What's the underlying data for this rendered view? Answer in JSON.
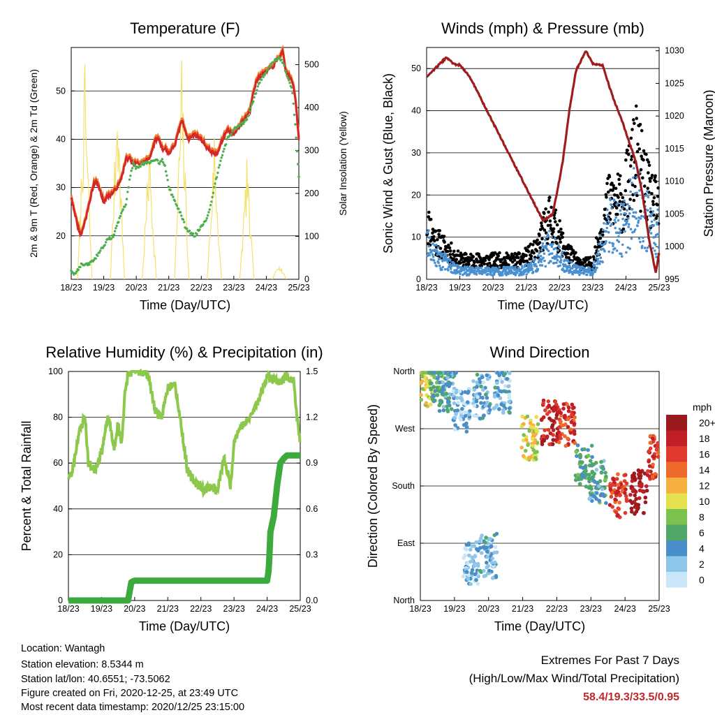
{
  "panels": {
    "temperature": {
      "title": "Temperature (F)",
      "ylabel_left": "2m & 9m T (Red, Orange) & 2m Td (Green)",
      "ylabel_right": "Solar Insolation (Yellow)",
      "xlabel": "Time (Day/UTC)",
      "yticks_left": [
        "20",
        "30",
        "40",
        "50"
      ],
      "yticks_right": [
        "0",
        "100",
        "200",
        "300",
        "400",
        "500"
      ]
    },
    "winds": {
      "title": "Winds (mph) & Pressure (mb)",
      "ylabel_left": "Sonic Wind & Gust (Blue, Black)",
      "ylabel_right": "Station Pressure (Maroon)",
      "xlabel": "Time (Day/UTC)",
      "yticks_left": [
        "0",
        "10",
        "20",
        "30",
        "40",
        "50"
      ],
      "yticks_right": [
        "995",
        "1000",
        "1005",
        "1010",
        "1015",
        "1020",
        "1025",
        "1030"
      ]
    },
    "humidity": {
      "title": "Relative Humidity (%) & Precipitation (in)",
      "ylabel_left": "Percent & Total Rainfall",
      "xlabel": "Time (Day/UTC)",
      "yticks_left": [
        "0",
        "20",
        "40",
        "60",
        "80",
        "100"
      ],
      "yticks_right": [
        "0.0",
        "0.3",
        "0.6",
        "0.9",
        "1.2",
        "1.5"
      ]
    },
    "direction": {
      "title": "Wind Direction",
      "ylabel_left": "Direction (Colored By Speed)",
      "xlabel": "Time (Day/UTC)",
      "yticks_left": [
        "North",
        "East",
        "South",
        "West",
        "North"
      ],
      "legend_title": "mph",
      "legend_labels": [
        "0",
        "2",
        "4",
        "6",
        "8",
        "10",
        "12",
        "14",
        "16",
        "18",
        "20+"
      ],
      "legend_colors": [
        "#c8e6f7",
        "#8ec6ea",
        "#4a8ec8",
        "#4fa868",
        "#7cc24e",
        "#e4e04e",
        "#f5b041",
        "#ee6a2a",
        "#e0392d",
        "#c01f27",
        "#9b1a1e"
      ]
    }
  },
  "x_ticks": [
    "18/23",
    "19/23",
    "20/23",
    "21/23",
    "22/23",
    "23/23",
    "24/23",
    "25/23"
  ],
  "info": {
    "location": "Location: Wantagh",
    "elevation": "Station elevation: 8.5344 m",
    "latlon": "Station lat/lon: 40.6551; -73.5062",
    "created": "Figure created on Fri, 2020-12-25, at 23:49 UTC",
    "recent": "Most recent data timestamp: 2020/12/25 23:15:00"
  },
  "extremes": {
    "line1": "Extremes For Past 7 Days",
    "line2": "(High/Low/Max Wind/Total Precipitation)",
    "values": "58.4/19.3/33.5/0.95"
  },
  "colors": {
    "temp_2m": "#d62728",
    "temp_9m": "#f08030",
    "dewpoint": "#4cae4c",
    "solar": "#f5e06a",
    "wind": "#4a90d0",
    "gust": "#000000",
    "pressure": "#a01c1c",
    "rh": "#8cc84b",
    "precip": "#3daa3d"
  },
  "chart_data": [
    {
      "type": "line",
      "title": "Temperature (F)",
      "xlabel": "Time (Day/UTC)",
      "ylabel": "2m & 9m T (Red, Orange) & 2m Td (Green)",
      "y2label": "Solar Insolation (Yellow)",
      "x": [
        0,
        0.1,
        0.2,
        0.3,
        0.5,
        0.7,
        0.8,
        0.9,
        1.0,
        1.1,
        1.3,
        1.5,
        1.7,
        1.8,
        1.9,
        2.0,
        2.2,
        2.4,
        2.6,
        2.7,
        2.8,
        2.9,
        3.0,
        3.2,
        3.4,
        3.5,
        3.6,
        3.8,
        4.0,
        4.2,
        4.4,
        4.5,
        4.6,
        4.8,
        5.0,
        5.2,
        5.4,
        5.5,
        5.6,
        5.7,
        5.8,
        6.0,
        6.2,
        6.4,
        6.5,
        6.6,
        6.8,
        6.9,
        7.0
      ],
      "series": [
        {
          "name": "2m T",
          "axis": "left",
          "values": [
            28,
            25,
            22,
            20,
            25,
            31,
            31,
            29,
            27,
            28,
            29,
            31,
            36,
            36,
            35,
            35,
            35,
            36,
            40,
            40,
            38,
            38,
            37,
            39,
            44,
            42,
            40,
            41,
            40,
            38,
            37,
            37,
            39,
            42,
            41,
            43,
            45,
            46,
            50,
            52,
            53,
            54,
            55,
            57,
            58,
            54,
            52,
            48,
            40
          ]
        },
        {
          "name": "2m Td",
          "axis": "left",
          "values": [
            13,
            12,
            13,
            14,
            14,
            15,
            16,
            17,
            18,
            19,
            20,
            24,
            27,
            32,
            35,
            34,
            35,
            35,
            36,
            35,
            36,
            34,
            30,
            27,
            24,
            22,
            21,
            20,
            22,
            24,
            30,
            33,
            36,
            40,
            42,
            43,
            44,
            46,
            48,
            50,
            52,
            54,
            56,
            57,
            56,
            54,
            50,
            42,
            32
          ]
        }
      ],
      "solar_insolation": {
        "axis": "right",
        "peaks": [
          {
            "day": 0.42,
            "value": 500
          },
          {
            "day": 1.42,
            "value": 460
          },
          {
            "day": 2.4,
            "value": 320
          },
          {
            "day": 3.4,
            "value": 510
          },
          {
            "day": 4.4,
            "value": 330
          },
          {
            "day": 5.4,
            "value": 280
          },
          {
            "day": 6.4,
            "value": 40
          }
        ]
      },
      "ylim": [
        11,
        59
      ],
      "y2lim": [
        0,
        540
      ],
      "xlim": [
        0,
        7
      ]
    },
    {
      "type": "line",
      "title": "Winds (mph) & Pressure (mb)",
      "xlabel": "Time (Day/UTC)",
      "ylabel": "Sonic Wind & Gust (Blue, Black)",
      "y2label": "Station Pressure (Maroon)",
      "pressure": {
        "x": [
          0,
          0.3,
          0.6,
          0.8,
          1.0,
          1.3,
          1.7,
          2.0,
          2.3,
          2.6,
          2.9,
          3.2,
          3.5,
          3.8,
          4.1,
          4.3,
          4.5,
          4.8,
          5.0,
          5.3,
          5.6,
          5.9,
          6.1,
          6.3,
          6.5,
          6.7,
          6.9,
          7.0
        ],
        "values": [
          1026,
          1027.5,
          1029,
          1028,
          1027.8,
          1026,
          1022,
          1019,
          1016,
          1013,
          1010,
          1007,
          1004,
          1005,
          1013,
          1021,
          1027,
          1030,
          1028,
          1027.7,
          1023,
          1019,
          1016,
          1013,
          1008,
          1001,
          996,
          999
        ]
      },
      "sonic_wind_envelope": {
        "x": [
          0,
          0.3,
          1.0,
          2.0,
          2.8,
          3.3,
          3.7,
          4.2,
          4.6,
          5.0,
          5.5,
          5.9,
          6.3,
          6.7,
          7.0
        ],
        "values": [
          13,
          8,
          3,
          3,
          3,
          5,
          12,
          5,
          3,
          3,
          20,
          18,
          28,
          20,
          16
        ]
      },
      "gust_envelope": {
        "x": [
          0,
          0.3,
          1.0,
          2.0,
          2.8,
          3.3,
          3.7,
          4.2,
          4.6,
          5.0,
          5.5,
          5.9,
          6.3,
          6.7,
          7.0
        ],
        "values": [
          18,
          12,
          6,
          6,
          6,
          9,
          20,
          9,
          5,
          5,
          25,
          24,
          40,
          26,
          22
        ]
      },
      "ylim": [
        0,
        55
      ],
      "y2lim": [
        995,
        1030.5
      ],
      "xlim": [
        0,
        7
      ]
    },
    {
      "type": "line",
      "title": "Relative Humidity (%) & Precipitation (in)",
      "xlabel": "Time (Day/UTC)",
      "ylabel": "Percent & Total Rainfall",
      "x_rh": [
        0,
        0.1,
        0.3,
        0.5,
        0.6,
        0.8,
        1.0,
        1.2,
        1.4,
        1.5,
        1.6,
        1.7,
        1.8,
        2.0,
        2.2,
        2.4,
        2.6,
        2.8,
        3.0,
        3.2,
        3.4,
        3.6,
        3.8,
        4.0,
        4.1,
        4.3,
        4.5,
        4.7,
        4.9,
        5.0,
        5.2,
        5.4,
        5.6,
        5.8,
        6.0,
        6.2,
        6.4,
        6.6,
        6.8,
        6.9,
        7.0
      ],
      "series": [
        {
          "name": "Relative Humidity",
          "axis": "left",
          "values": [
            54,
            55,
            72,
            81,
            60,
            57,
            65,
            80,
            66,
            78,
            68,
            89,
            99,
            100,
            100,
            99,
            84,
            79,
            93,
            96,
            77,
            56,
            52,
            50,
            48,
            50,
            48,
            62,
            50,
            70,
            76,
            78,
            83,
            90,
            98,
            97,
            95,
            98,
            96,
            80,
            68
          ]
        }
      ],
      "precipitation": {
        "axis": "right",
        "x": [
          0,
          1.8,
          1.9,
          2.0,
          6.0,
          6.05,
          6.1,
          6.2,
          6.3,
          6.4,
          6.5,
          6.6,
          7.0
        ],
        "values": [
          0,
          0,
          0.12,
          0.13,
          0.13,
          0.2,
          0.45,
          0.55,
          0.75,
          0.9,
          0.93,
          0.95,
          0.95
        ]
      },
      "ylim": [
        0,
        100
      ],
      "y2lim": [
        0,
        1.5
      ],
      "xlim": [
        0,
        7
      ]
    },
    {
      "type": "scatter",
      "title": "Wind Direction",
      "xlabel": "Time (Day/UTC)",
      "ylabel": "Direction (Colored By Speed)",
      "y_ticks": [
        "North",
        "East",
        "South",
        "West",
        "North"
      ],
      "ylim": [
        0,
        360
      ],
      "xlim": [
        0,
        7
      ],
      "clusters": [
        {
          "day": 0.15,
          "dir_deg": 340,
          "speed": 10
        },
        {
          "day": 0.5,
          "dir_deg": 345,
          "speed": 6
        },
        {
          "day": 0.8,
          "dir_deg": 330,
          "speed": 4
        },
        {
          "day": 1.2,
          "dir_deg": 300,
          "speed": 2
        },
        {
          "day": 1.8,
          "dir_deg": 320,
          "speed": 3
        },
        {
          "day": 2.4,
          "dir_deg": 330,
          "speed": 3
        },
        {
          "day": 1.5,
          "dir_deg": 60,
          "speed": 2
        },
        {
          "day": 2.0,
          "dir_deg": 70,
          "speed": 3
        },
        {
          "day": 3.2,
          "dir_deg": 255,
          "speed": 10
        },
        {
          "day": 3.8,
          "dir_deg": 280,
          "speed": 18
        },
        {
          "day": 4.3,
          "dir_deg": 278,
          "speed": 16
        },
        {
          "day": 4.8,
          "dir_deg": 210,
          "speed": 6
        },
        {
          "day": 5.2,
          "dir_deg": 185,
          "speed": 5
        },
        {
          "day": 5.8,
          "dir_deg": 165,
          "speed": 16
        },
        {
          "day": 6.4,
          "dir_deg": 170,
          "speed": 20
        },
        {
          "day": 6.9,
          "dir_deg": 225,
          "speed": 16
        }
      ]
    }
  ]
}
